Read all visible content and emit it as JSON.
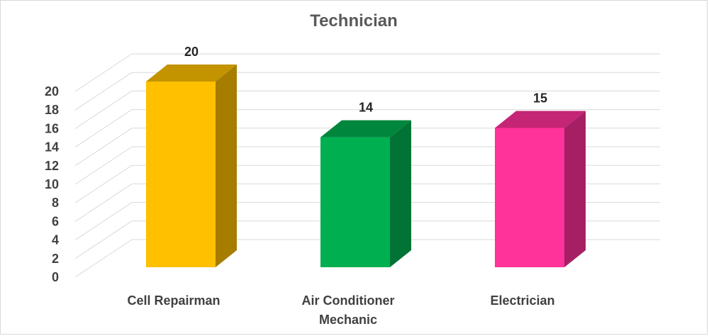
{
  "chart_data": {
    "type": "bar",
    "title": "Technician",
    "categories": [
      "Cell Repairman",
      "Air Conditioner Mechanic",
      "Electrician"
    ],
    "category_lines": [
      [
        "Cell Repairman"
      ],
      [
        "Air Conditioner",
        "Mechanic"
      ],
      [
        "Electrician"
      ]
    ],
    "values": [
      20,
      14,
      15
    ],
    "data_labels": [
      "20",
      "14",
      "15"
    ],
    "ylim": [
      0,
      20
    ],
    "yticks": [
      "0",
      "2",
      "4",
      "6",
      "8",
      "10",
      "12",
      "14",
      "16",
      "18",
      "20"
    ],
    "xlabel": "",
    "ylabel": "",
    "grid": true,
    "legend": "none",
    "style": "3d-column",
    "colors": [
      {
        "front": "#FFC000",
        "side": "#A77D00",
        "top": "#C49300"
      },
      {
        "front": "#00B050",
        "side": "#007335",
        "top": "#00873D"
      },
      {
        "front": "#FF3399",
        "side": "#A61F64",
        "top": "#C42575"
      }
    ]
  }
}
